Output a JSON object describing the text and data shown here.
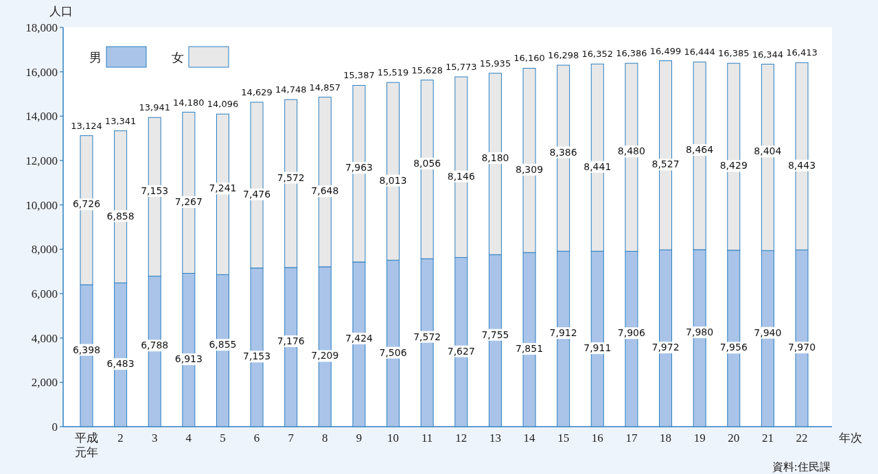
{
  "chart_data": {
    "type": "bar",
    "stacked": true,
    "ylabel": "人口",
    "xlabel": "年次",
    "annotations": [
      "資料:住民課"
    ],
    "legend": "top left",
    "categories": [
      "平成元年",
      "2",
      "3",
      "4",
      "5",
      "6",
      "7",
      "8",
      "9",
      "10",
      "11",
      "12",
      "13",
      "14",
      "15",
      "16",
      "17",
      "18",
      "19",
      "20",
      "21",
      "22"
    ],
    "ylim": [
      0,
      18000
    ],
    "yticks": [
      0,
      {
        "value": 2000,
        "label": "2,000"
      },
      {
        "value": 4000,
        "label": "4,000"
      },
      {
        "value": 6000,
        "label": "6,000"
      },
      {
        "value": 8000,
        "label": "8,000"
      },
      {
        "value": 10000,
        "label": "10,000"
      },
      {
        "value": 12000,
        "label": "12,000"
      },
      {
        "value": 14000,
        "label": "14,000"
      },
      {
        "value": 16000,
        "label": "16,000"
      },
      {
        "value": 18000,
        "label": "18,000"
      }
    ],
    "series": [
      {
        "name": "男",
        "color": "#a9c4e8",
        "values": [
          6398,
          6483,
          6788,
          6913,
          6855,
          7153,
          7176,
          7209,
          7424,
          7506,
          7572,
          7627,
          7755,
          7851,
          7912,
          7911,
          7906,
          7972,
          7980,
          7956,
          7940,
          7970
        ],
        "value_labels": [
          "6,398",
          "6,483",
          "6,788",
          "6,913",
          "6,855",
          "7,153",
          "7,176",
          "7,209",
          "7,424",
          "7,506",
          "7,572",
          "7,627",
          "7,755",
          "7,851",
          "7,912",
          "7,911",
          "7,906",
          "7,972",
          "7,980",
          "7,956",
          "7,940",
          "7,970"
        ]
      },
      {
        "name": "女",
        "color": "#e8e8e8",
        "values": [
          6726,
          6858,
          7153,
          7267,
          7241,
          7476,
          7572,
          7648,
          7963,
          8013,
          8056,
          8146,
          8180,
          8309,
          8386,
          8441,
          8480,
          8527,
          8464,
          8429,
          8404,
          8443
        ],
        "value_labels": [
          "6,726",
          "6,858",
          "7,153",
          "7,267",
          "7,241",
          "7,476",
          "7,572",
          "7,648",
          "7,963",
          "8,013",
          "8,056",
          "8,146",
          "8,180",
          "8,309",
          "8,386",
          "8,441",
          "8,480",
          "8,527",
          "8,464",
          "8,429",
          "8,404",
          "8,443"
        ]
      }
    ],
    "totals": [
      "13,124",
      "13,341",
      "13,941",
      "14,180",
      "14,096",
      "14,629",
      "14,748",
      "14,857",
      "15,387",
      "15,519",
      "15,628",
      "15,773",
      "15,935",
      "16,160",
      "16,298",
      "16,352",
      "16,386",
      "16,499",
      "16,444",
      "16,385",
      "16,344",
      "16,413"
    ]
  }
}
